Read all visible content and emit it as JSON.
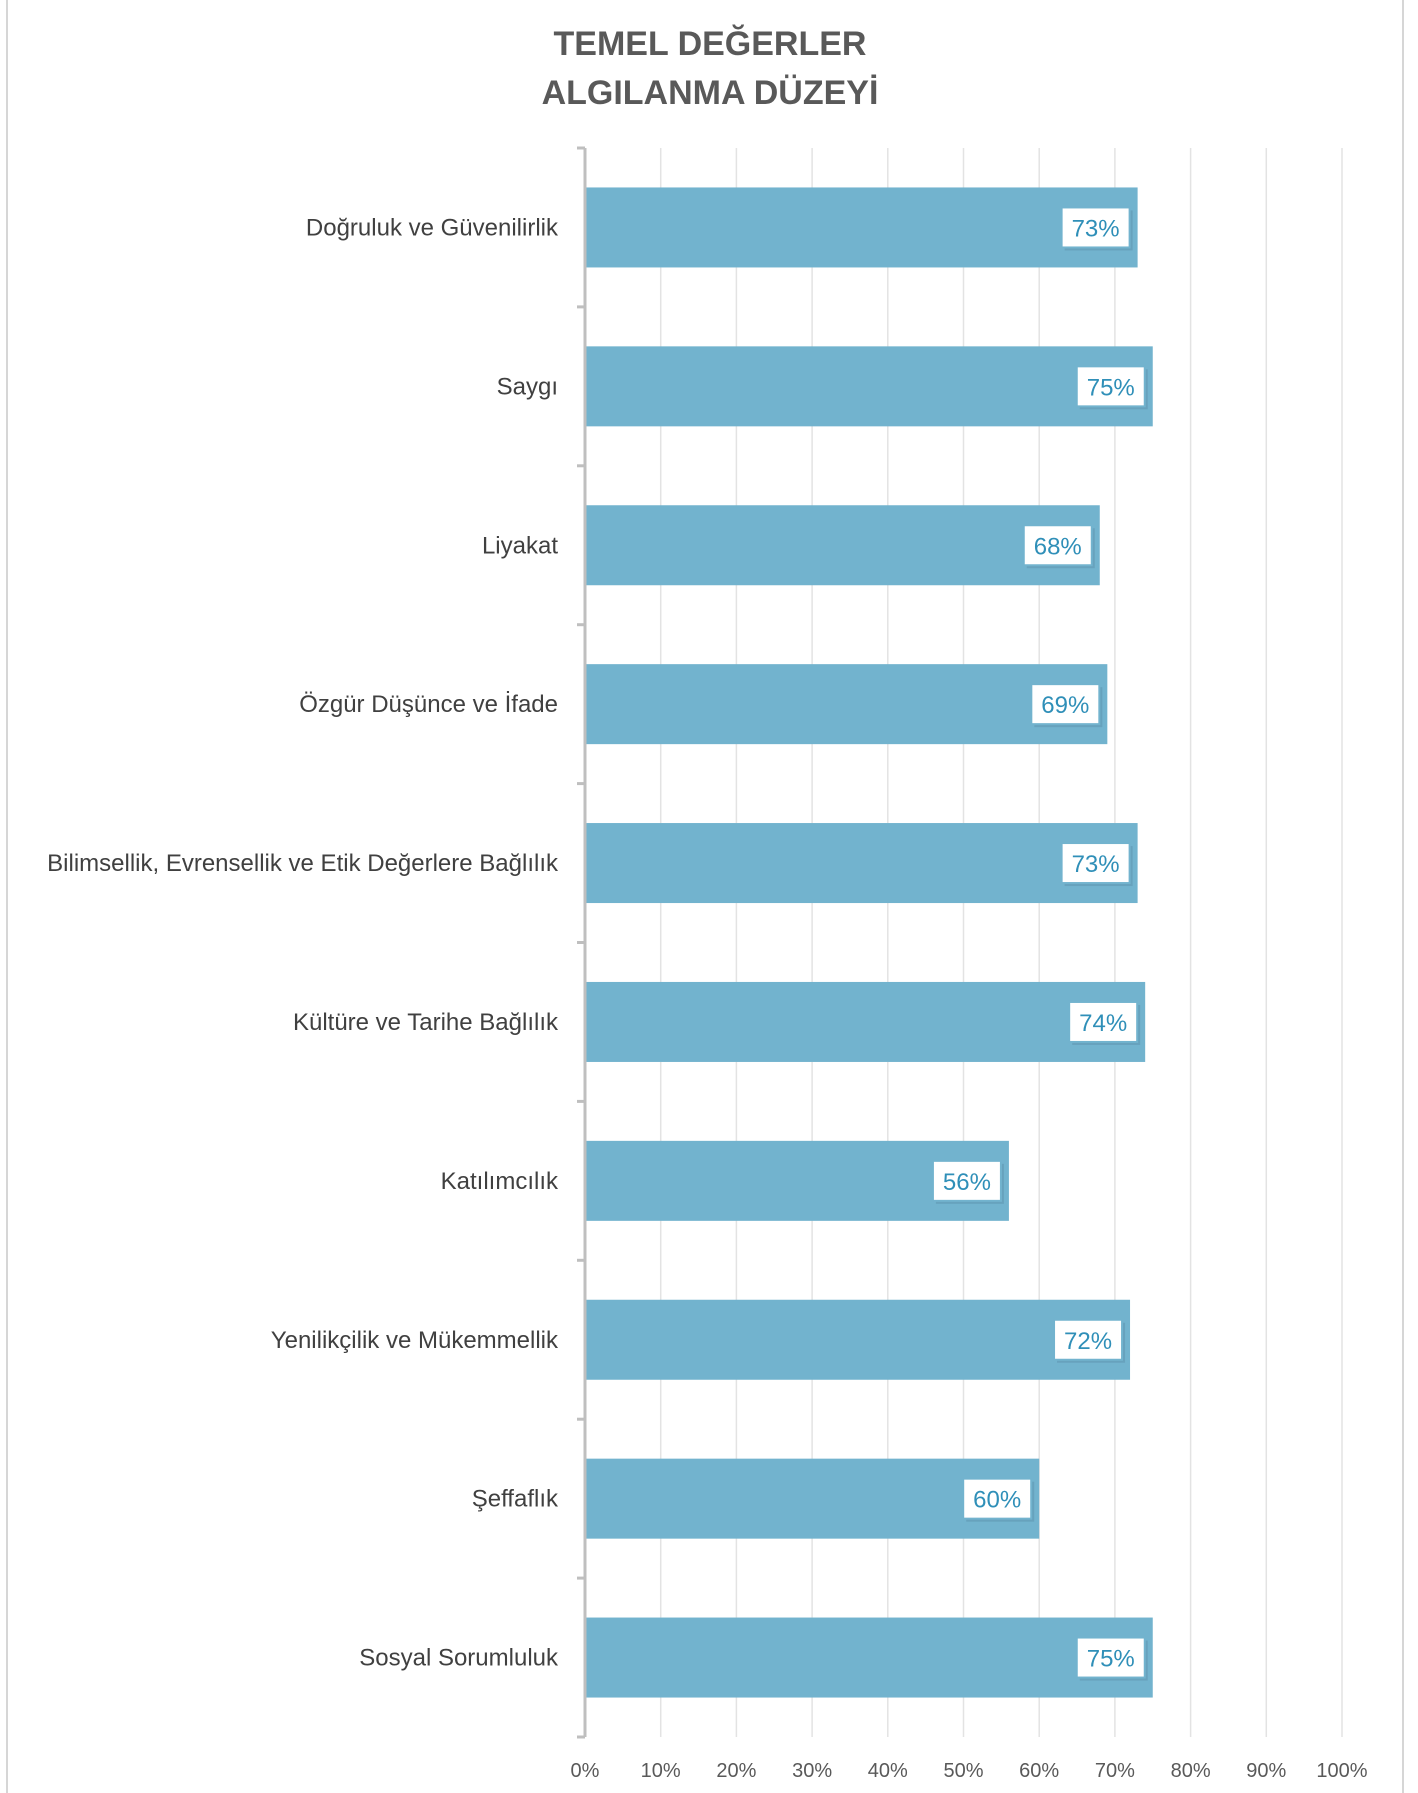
{
  "chart_data": {
    "type": "bar",
    "orientation": "horizontal",
    "title_lines": [
      "TEMEL DEĞERLER",
      "ALGILANMA DÜZEYİ"
    ],
    "categories": [
      "Doğruluk ve Güvenilirlik",
      "Saygı",
      "Liyakat",
      "Özgür Düşünce ve İfade",
      "Bilimsellik, Evrensellik ve Etik Değerlere Bağlılık",
      "Kültüre ve Tarihe Bağlılık",
      "Katılımcılık",
      "Yenilikçilik ve Mükemmellik",
      "Şeffaflık",
      "Sosyal Sorumluluk"
    ],
    "values": [
      73,
      75,
      68,
      69,
      73,
      74,
      56,
      72,
      60,
      75
    ],
    "data_labels": [
      "73%",
      "75%",
      "68%",
      "69%",
      "73%",
      "74%",
      "56%",
      "72%",
      "60%",
      "75%"
    ],
    "x_ticks": [
      "0%",
      "10%",
      "20%",
      "30%",
      "40%",
      "50%",
      "60%",
      "70%",
      "80%",
      "90%",
      "100%"
    ],
    "xlim": [
      0,
      100
    ],
    "grid": true,
    "legend": "none",
    "colors": {
      "bar": "#72b3ce",
      "label_text": "#2f8fb8",
      "label_border": "#72b3ce",
      "grid": "#e3e3e3",
      "axis": "#bfbfbf"
    }
  }
}
